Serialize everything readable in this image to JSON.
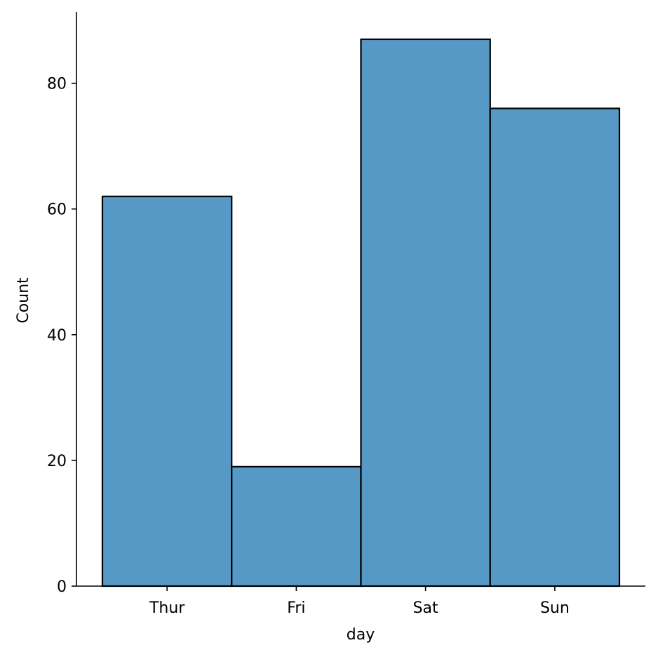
{
  "chart_data": {
    "type": "bar",
    "categories": [
      "Thur",
      "Fri",
      "Sat",
      "Sun"
    ],
    "values": [
      62,
      19,
      87,
      76
    ],
    "title": "",
    "xlabel": "day",
    "ylabel": "Count",
    "ylim": [
      0,
      91.35
    ],
    "yticks": [
      0,
      20,
      40,
      60,
      80
    ],
    "grid": false,
    "legend": "none",
    "bar_color": "#5799c6",
    "edge_color": "#000000"
  }
}
